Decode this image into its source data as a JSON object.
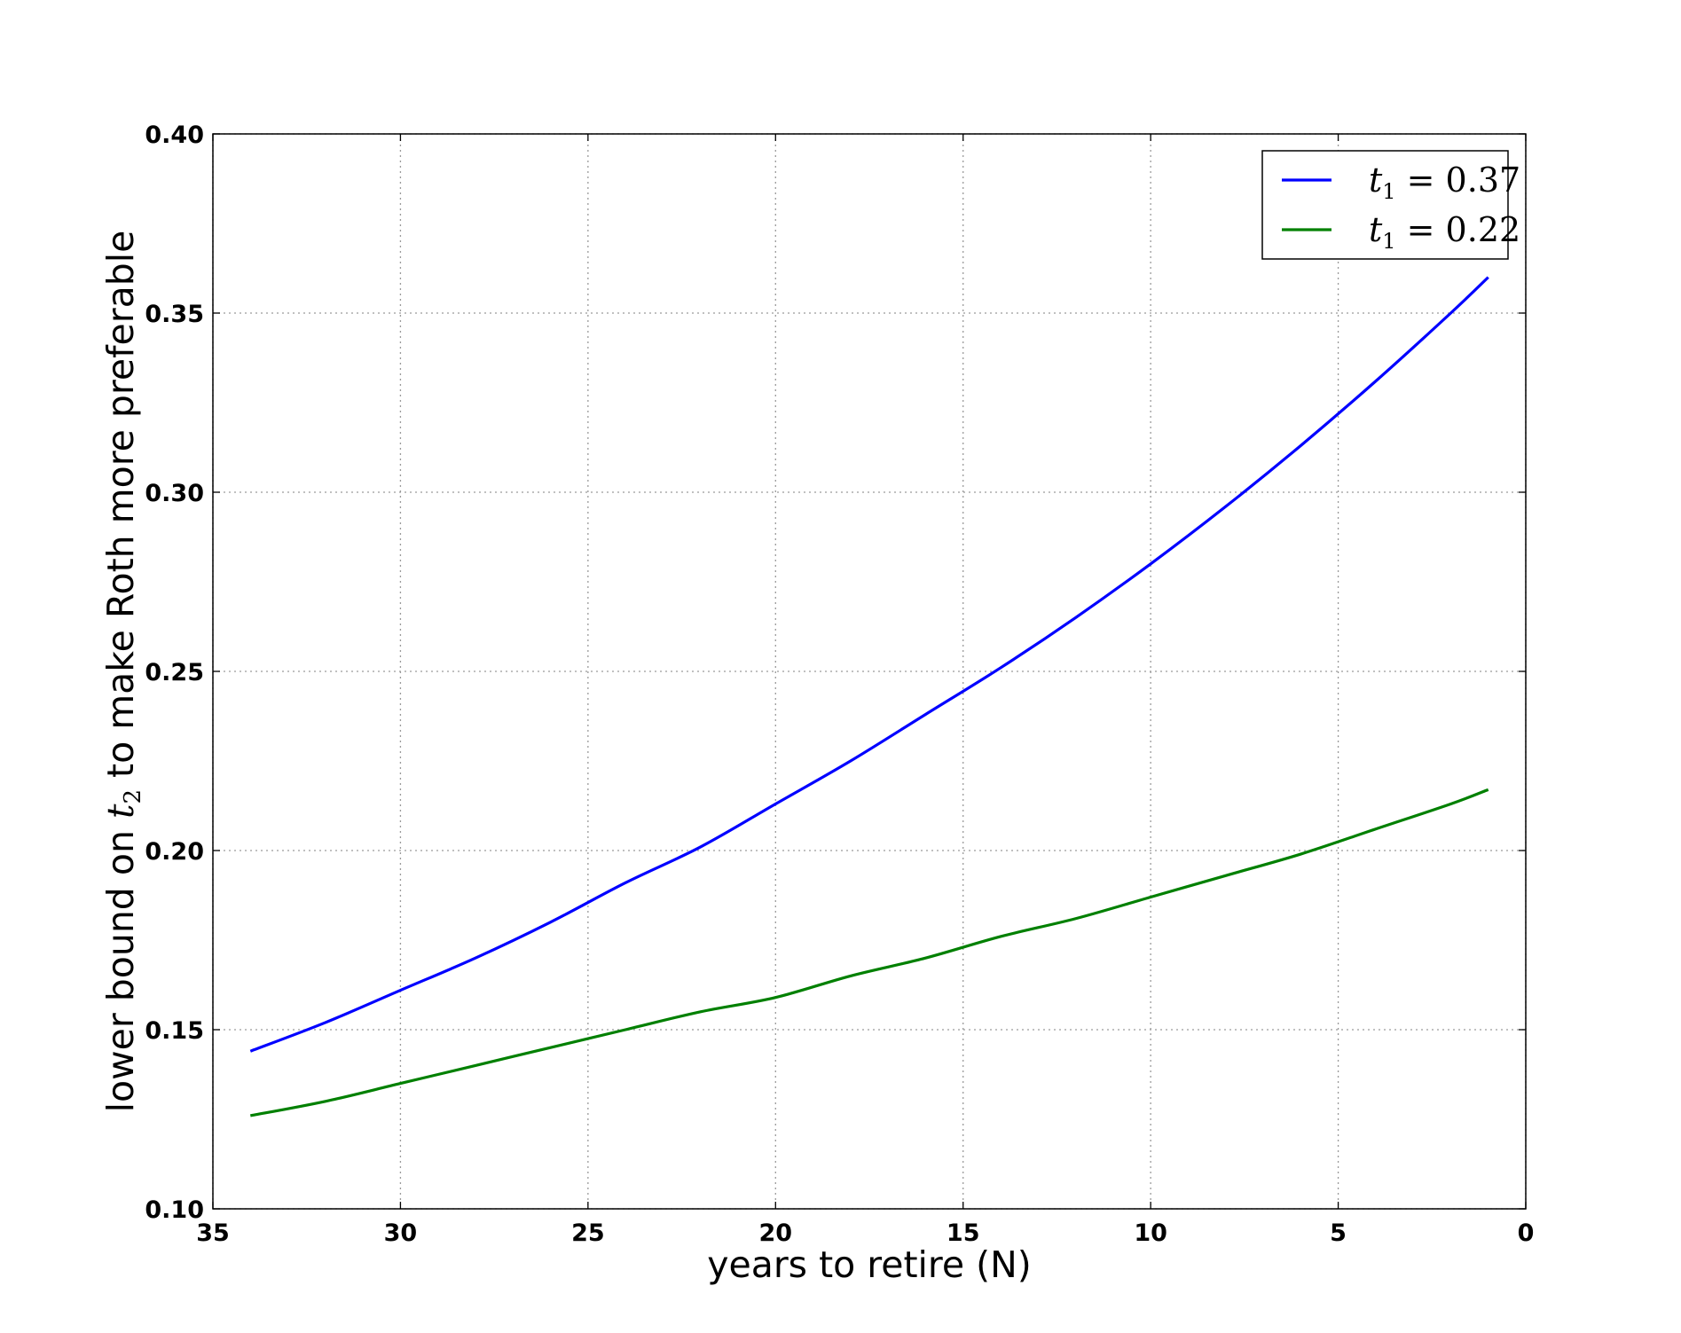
{
  "chart_data": {
    "type": "line",
    "title": "",
    "xlabel": "years to retire (N)",
    "ylabel": {
      "before": "lower bound on ",
      "var": "t",
      "sub": "2",
      "after": " to make Roth more preferable"
    },
    "xlim": [
      35,
      0
    ],
    "ylim": [
      0.1,
      0.4
    ],
    "x_inverted": true,
    "grid": true,
    "legend_position": "top-right",
    "x_ticks": [
      {
        "value": 35,
        "label": "35"
      },
      {
        "value": 30,
        "label": "30"
      },
      {
        "value": 25,
        "label": "25"
      },
      {
        "value": 20,
        "label": "20"
      },
      {
        "value": 15,
        "label": "15"
      },
      {
        "value": 10,
        "label": "10"
      },
      {
        "value": 5,
        "label": "5"
      },
      {
        "value": 0,
        "label": "0"
      }
    ],
    "y_ticks": [
      {
        "value": 0.1,
        "label": "0.10"
      },
      {
        "value": 0.15,
        "label": "0.15"
      },
      {
        "value": 0.2,
        "label": "0.20"
      },
      {
        "value": 0.25,
        "label": "0.25"
      },
      {
        "value": 0.3,
        "label": "0.30"
      },
      {
        "value": 0.35,
        "label": "0.35"
      },
      {
        "value": 0.4,
        "label": "0.40"
      }
    ],
    "x": [
      34,
      32,
      30,
      28,
      26,
      24,
      22,
      20,
      18,
      16,
      14,
      12,
      10,
      8,
      6,
      4,
      2,
      1
    ],
    "series": [
      {
        "name": "t1 = 0.37",
        "legend": {
          "var": "t",
          "sub": "1",
          "rest": " = 0.37"
        },
        "color": "#0000ff",
        "values": [
          0.144,
          0.152,
          0.161,
          0.17,
          0.18,
          0.191,
          0.201,
          0.213,
          0.225,
          0.238,
          0.251,
          0.265,
          0.28,
          0.296,
          0.313,
          0.331,
          0.35,
          0.36
        ]
      },
      {
        "name": "t1 = 0.22",
        "legend": {
          "var": "t",
          "sub": "1",
          "rest": " = 0.22"
        },
        "color": "#008000",
        "values": [
          0.126,
          0.13,
          0.135,
          0.14,
          0.145,
          0.15,
          0.155,
          0.159,
          0.165,
          0.17,
          0.176,
          0.181,
          0.187,
          0.193,
          0.199,
          0.206,
          0.213,
          0.217
        ]
      }
    ]
  }
}
